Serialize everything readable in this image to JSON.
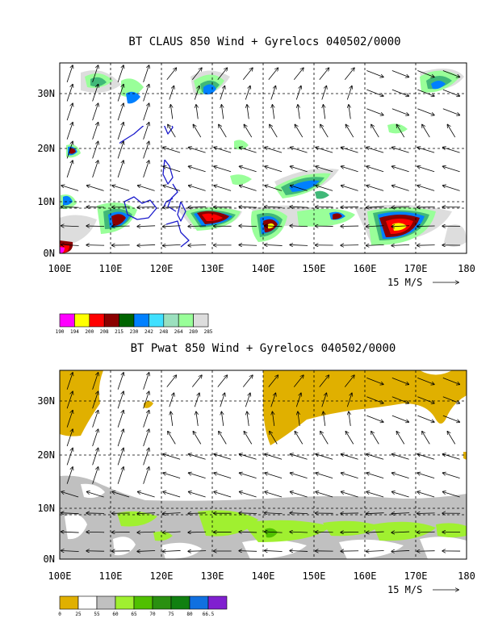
{
  "top_panel": {
    "title": "BT CLAUS 850 Wind + Gyrelocs 040502/0000",
    "x_ticks": [
      "100E",
      "110E",
      "120E",
      "130E",
      "140E",
      "150E",
      "160E",
      "170E",
      "180"
    ],
    "y_ticks": [
      "0N",
      "10N",
      "20N",
      "30N"
    ],
    "ref_vector": "15 M/S",
    "colorbar": {
      "colors": [
        "#ff00ff",
        "#ffff00",
        "#ff0000",
        "#8b0000",
        "#006400",
        "#0080ff",
        "#40e0ff",
        "#9be0be",
        "#99ff99",
        "#dddddd"
      ],
      "labels": [
        "190",
        "194",
        "200",
        "208",
        "215",
        "230",
        "242",
        "248",
        "264",
        "280",
        "285"
      ]
    }
  },
  "bottom_panel": {
    "title": "BT Pwat 850 Wind + Gyrelocs 040502/0000",
    "x_ticks": [
      "100E",
      "110E",
      "120E",
      "130E",
      "140E",
      "150E",
      "160E",
      "170E",
      "180"
    ],
    "y_ticks": [
      "0N",
      "10N",
      "20N",
      "30N"
    ],
    "ref_vector": "15 M/S",
    "colorbar": {
      "colors": [
        "#e0b000",
        "#ffffff",
        "#c0c0c0",
        "#a0f030",
        "#50c000",
        "#2a9010",
        "#108010",
        "#1070e0",
        "#8020d0"
      ],
      "labels": [
        "0",
        "25",
        "55",
        "60",
        "65",
        "70",
        "75",
        "80",
        "66.5"
      ]
    }
  },
  "chart_data": {
    "type": "heatmap",
    "map_extent": {
      "lon": [
        100,
        180
      ],
      "lat": [
        0,
        35
      ]
    },
    "grid": true,
    "panels": [
      {
        "name": "BT CLAUS 850 Wind + Gyrelocs 040502/0000",
        "field": "CLAUS brightness temperature",
        "levels": [
          190,
          194,
          200,
          208,
          215,
          230,
          242,
          248,
          264,
          280,
          285
        ]
      },
      {
        "name": "BT Pwat 850 Wind + Gyrelocs 040502/0000",
        "field": "Precipitable water",
        "levels": [
          0,
          25,
          55,
          60,
          65,
          70,
          75,
          80,
          66.5
        ]
      }
    ],
    "reference_vector": "15 M/S"
  }
}
